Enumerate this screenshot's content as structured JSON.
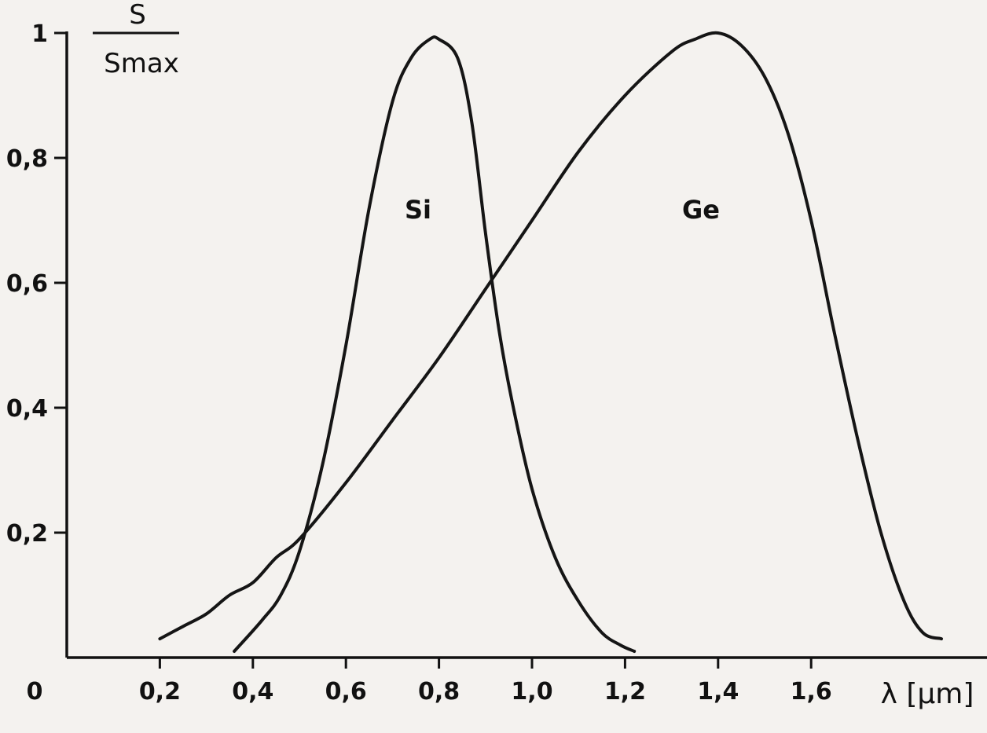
{
  "chart_data": {
    "type": "line",
    "ylabel_numerator": "S",
    "ylabel_denominator": "Smax",
    "xlabel": "λ [μm]",
    "origin_label": "0",
    "xlim": [
      0,
      1.9
    ],
    "ylim": [
      0,
      1.0
    ],
    "x_ticks": [
      0.2,
      0.4,
      0.6,
      0.8,
      1.0,
      1.2,
      1.4,
      1.6
    ],
    "x_tick_labels": [
      "0,2",
      "0,4",
      "0,6",
      "0,8",
      "1,0",
      "1,2",
      "1,4",
      "1,6"
    ],
    "y_ticks": [
      0.2,
      0.4,
      0.6,
      0.8,
      1.0
    ],
    "y_tick_labels": [
      "0,2",
      "0,4",
      "0,6",
      "0,8",
      "1"
    ],
    "grid": false,
    "series": [
      {
        "name": "Si",
        "x": [
          0.36,
          0.42,
          0.46,
          0.5,
          0.55,
          0.6,
          0.65,
          0.7,
          0.74,
          0.78,
          0.8,
          0.84,
          0.87,
          0.9,
          0.93,
          0.96,
          1.0,
          1.05,
          1.1,
          1.15,
          1.19,
          1.22
        ],
        "y": [
          0.01,
          0.06,
          0.1,
          0.17,
          0.31,
          0.5,
          0.72,
          0.89,
          0.96,
          0.99,
          0.99,
          0.96,
          0.86,
          0.68,
          0.52,
          0.4,
          0.27,
          0.16,
          0.09,
          0.04,
          0.02,
          0.01
        ]
      },
      {
        "name": "Ge",
        "x": [
          0.2,
          0.25,
          0.3,
          0.35,
          0.4,
          0.45,
          0.5,
          0.6,
          0.7,
          0.8,
          0.9,
          1.0,
          1.1,
          1.2,
          1.3,
          1.35,
          1.4,
          1.45,
          1.5,
          1.55,
          1.6,
          1.65,
          1.7,
          1.75,
          1.8,
          1.84,
          1.88
        ],
        "y": [
          0.03,
          0.05,
          0.07,
          0.1,
          0.12,
          0.16,
          0.19,
          0.28,
          0.38,
          0.48,
          0.59,
          0.7,
          0.81,
          0.9,
          0.97,
          0.99,
          1.0,
          0.98,
          0.93,
          0.84,
          0.7,
          0.52,
          0.35,
          0.2,
          0.09,
          0.04,
          0.03
        ]
      }
    ]
  }
}
